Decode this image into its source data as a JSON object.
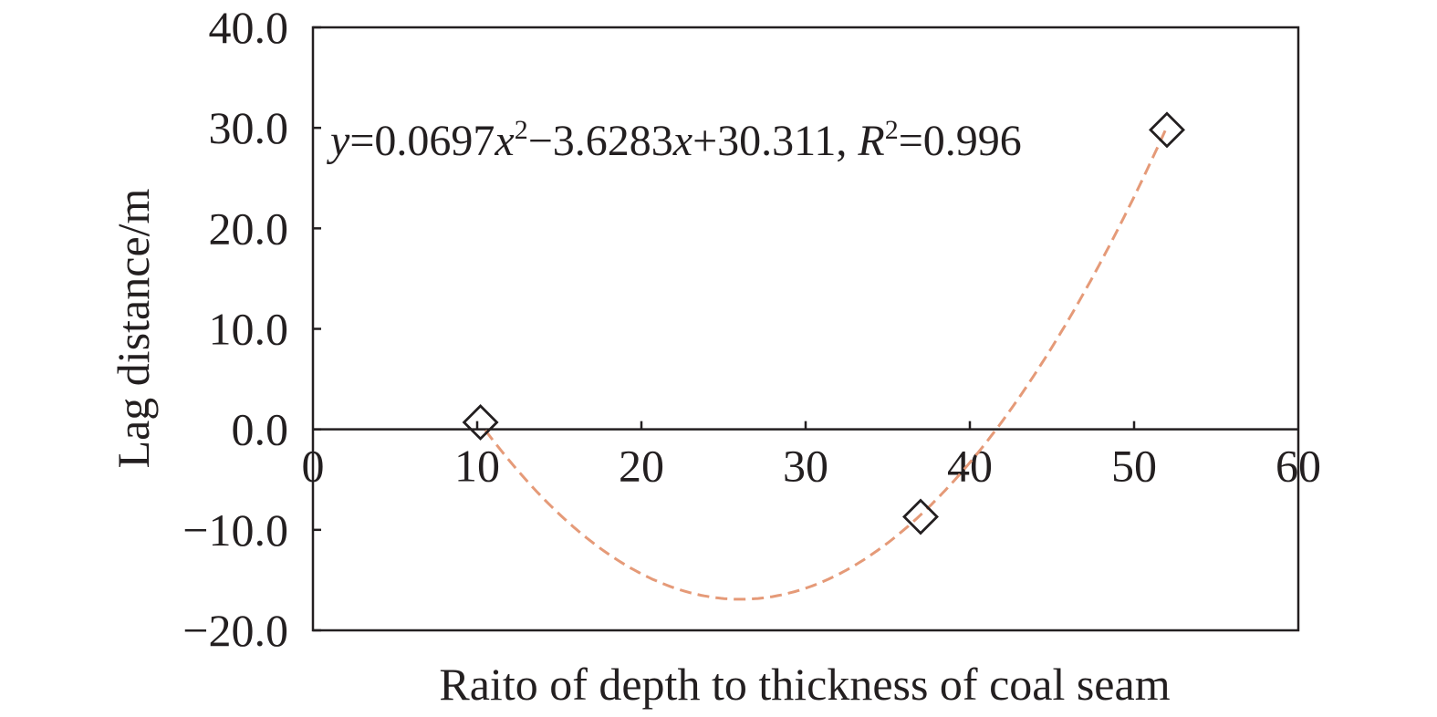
{
  "chart_data": {
    "type": "scatter",
    "xlabel": "Raito of depth to thickness of coal seam",
    "ylabel": "Lag distance/m",
    "xlim": [
      0,
      60
    ],
    "ylim": [
      -20,
      40
    ],
    "x_ticks": [
      "0",
      "10",
      "20",
      "30",
      "40",
      "50",
      "60"
    ],
    "y_ticks": [
      "40.0",
      "30.0",
      "20.0",
      "10.0",
      "0.0",
      "−10.0",
      "−20.0"
    ],
    "grid": false,
    "series": [
      {
        "marker": "diamond-open",
        "x": [
          10.2,
          37.0,
          52.0
        ],
        "y": [
          0.7,
          -8.7,
          29.8
        ]
      }
    ],
    "fit": {
      "type": "polynomial",
      "order": 2,
      "coefficients": [
        0.0697,
        -3.6283,
        30.311
      ],
      "r2": 0.996,
      "x_range": [
        10.5,
        52.0
      ],
      "style": "dashed",
      "color": "#e59a78"
    },
    "annotation": {
      "y_var": "y",
      "eq_part1": "=0.0697",
      "x_var": "x",
      "sup2": "2",
      "eq_part2": "−3.6283",
      "eq_part3": "+30.311, ",
      "r_var": "R",
      "eq_part4": "=0.996"
    },
    "colors": {
      "axis": "#231f20",
      "marker": "#231f20",
      "fit_line": "#e59a78"
    }
  }
}
